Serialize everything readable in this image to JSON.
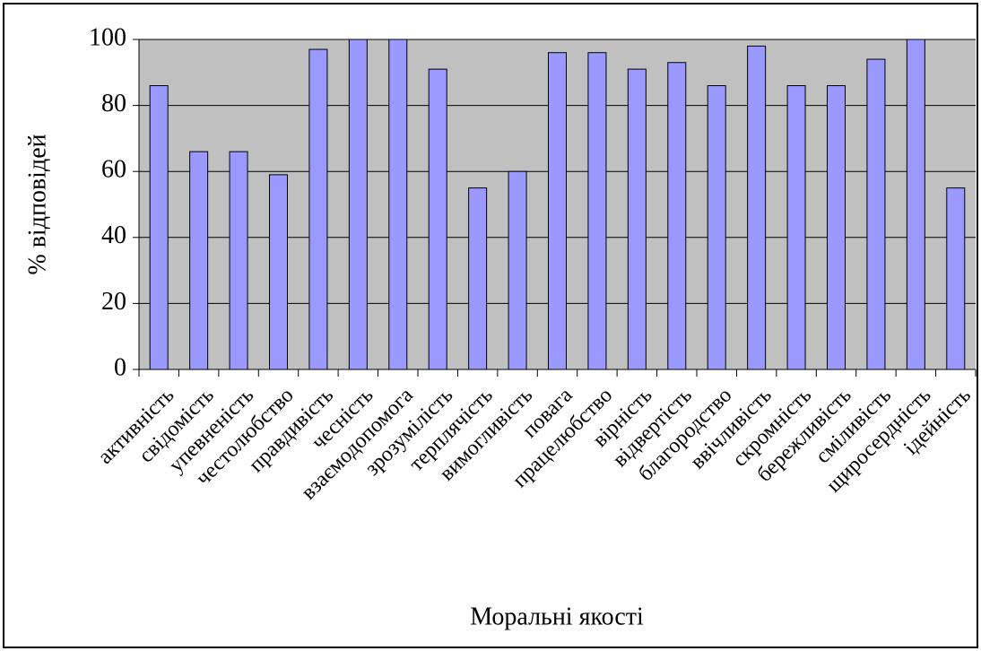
{
  "chart_data": {
    "type": "bar",
    "xlabel": "Моральні якості",
    "ylabel": "% відповідей",
    "categories": [
      "активність",
      "свідомість",
      "упевненість",
      "честолюбство",
      "правдивість",
      "чесність",
      "взаємодопомога",
      "зрозумілість",
      "терплячість",
      "вимогливість",
      "повага",
      "працелюбство",
      "вірність",
      "відвертість",
      "благородство",
      "ввічливість",
      "скромність",
      "бережливість",
      "сміливість",
      "щиросердність",
      "ідейність"
    ],
    "values": [
      86,
      66,
      66,
      59,
      97,
      100,
      100,
      91,
      55,
      60,
      96,
      96,
      91,
      93,
      86,
      98,
      86,
      86,
      94,
      100,
      55
    ],
    "color": "#9999ff",
    "ylim": [
      0,
      100
    ],
    "yticks": [
      0,
      20,
      40,
      60,
      80,
      100
    ],
    "grid": true
  }
}
